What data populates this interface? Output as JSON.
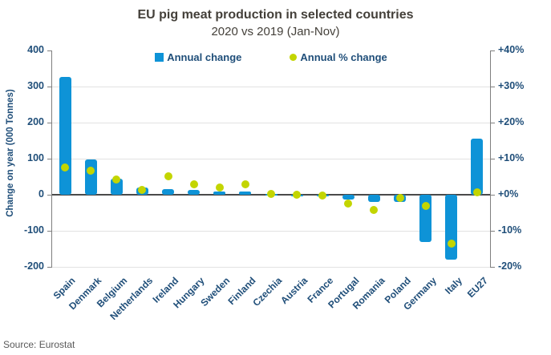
{
  "chart_data": {
    "type": "bar",
    "combo": "bar + scatter (dual axis)",
    "title": "EU pig meat production in selected countries",
    "subtitle": "2020 vs 2019 (Jan-Nov)",
    "source": "Source: Eurostat",
    "categories": [
      "Spain",
      "Denmark",
      "Belgium",
      "Netherlands",
      "Ireland",
      "Hungary",
      "Sweden",
      "Finland",
      "Czechia",
      "Austria",
      "France",
      "Portugal",
      "Romania",
      "Poland",
      "Germany",
      "Italy",
      "EU27"
    ],
    "series": [
      {
        "name": "Annual change",
        "type": "bar",
        "axis": "left",
        "color": "#0e93d7",
        "values": [
          327,
          97,
          45,
          20,
          16,
          14,
          8,
          8,
          2,
          -2,
          -3,
          -13,
          -19,
          -21,
          -130,
          -180,
          155
        ]
      },
      {
        "name": "Annual % change",
        "type": "scatter",
        "axis": "right",
        "color": "#c3d500",
        "values": [
          7.6,
          6.7,
          4.3,
          1.3,
          5.2,
          3.0,
          2.1,
          2.8,
          0.2,
          -0.1,
          -0.2,
          -2.4,
          -4.2,
          -0.8,
          -3.1,
          -13.6,
          0.7
        ]
      }
    ],
    "left_axis": {
      "title": "Change on year (000 Tonnes)",
      "min": -200,
      "max": 400,
      "step": 100,
      "tick_labels": [
        "400",
        "300",
        "200",
        "100",
        "0",
        "-100",
        "-200"
      ],
      "gridline_values": [
        300,
        200,
        100,
        -100,
        -200
      ]
    },
    "right_axis": {
      "min": -20,
      "max": 40,
      "step": 10,
      "tick_labels": [
        "+40%",
        "+30%",
        "+20%",
        "+10%",
        "+0%",
        "-10%",
        "-20%"
      ]
    },
    "legend_position": "top-center",
    "grid": "horizontal-only",
    "colors": {
      "title_text": "#44403a",
      "axis_text": "#1f4e79",
      "gridline": "#e2e2e2",
      "zero_line": "#4a4a4a",
      "axis_line": "#7f7f7f",
      "source_text": "#595959"
    }
  }
}
